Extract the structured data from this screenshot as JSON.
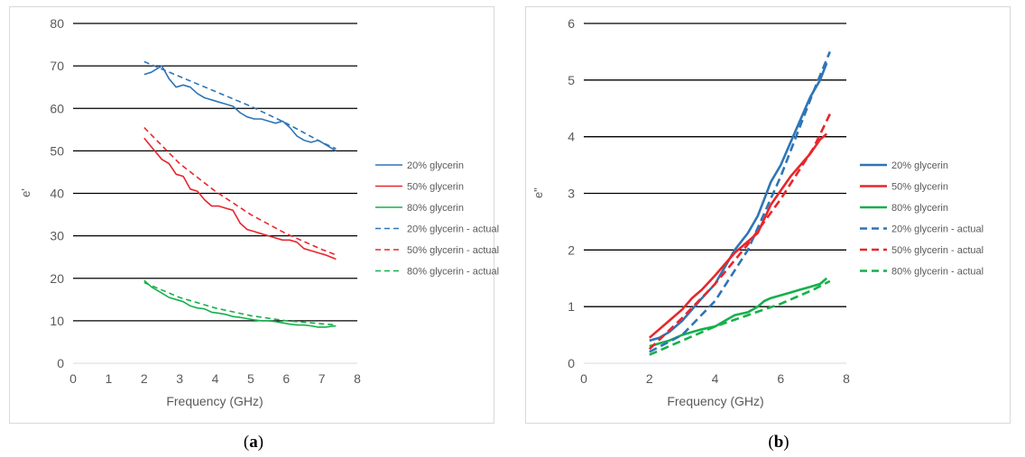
{
  "colors": {
    "blue": "#2e75b6",
    "red": "#e8262b",
    "green": "#15b04b"
  },
  "caption_a": {
    "open": "(",
    "letter": "a",
    "close": ")"
  },
  "caption_b": {
    "open": "(",
    "letter": "b",
    "close": ")"
  },
  "chart_data": [
    {
      "type": "line",
      "title": "",
      "xlabel": "Frequency (GHz)",
      "ylabel": "e'",
      "xlim": [
        0,
        8
      ],
      "ylim": [
        0,
        80
      ],
      "xticks": [
        0,
        1,
        2,
        3,
        4,
        5,
        6,
        7,
        8
      ],
      "yticks": [
        0,
        10,
        20,
        30,
        40,
        50,
        60,
        70,
        80
      ],
      "grid": "horizontal",
      "legend": "right",
      "series": [
        {
          "name": "20% glycerin",
          "color": "blue",
          "dash": false,
          "x": [
            2.0,
            2.2,
            2.5,
            2.7,
            2.9,
            3.1,
            3.3,
            3.5,
            3.7,
            3.9,
            4.1,
            4.3,
            4.5,
            4.7,
            4.9,
            5.1,
            5.3,
            5.5,
            5.7,
            5.9,
            6.1,
            6.3,
            6.5,
            6.7,
            6.9,
            7.1,
            7.4
          ],
          "y": [
            68,
            68.5,
            70,
            67,
            65,
            65.5,
            65,
            63.5,
            62.5,
            62,
            61.5,
            61,
            60.5,
            59,
            58,
            57.5,
            57.5,
            57,
            56.5,
            57,
            55.5,
            53.5,
            52.5,
            52,
            52.5,
            51.5,
            50
          ]
        },
        {
          "name": "50% glycerin",
          "color": "red",
          "dash": false,
          "x": [
            2.0,
            2.2,
            2.5,
            2.7,
            2.9,
            3.1,
            3.3,
            3.5,
            3.7,
            3.9,
            4.1,
            4.3,
            4.5,
            4.7,
            4.9,
            5.1,
            5.3,
            5.5,
            5.7,
            5.9,
            6.1,
            6.3,
            6.5,
            6.7,
            6.9,
            7.1,
            7.4
          ],
          "y": [
            53,
            51,
            48,
            47,
            44.5,
            44,
            41,
            40.5,
            38.5,
            37,
            37,
            36.5,
            36,
            33,
            31.5,
            31,
            30.5,
            30,
            29.5,
            29,
            29,
            28.5,
            27,
            26.5,
            26,
            25.5,
            24.5
          ]
        },
        {
          "name": "80% glycerin",
          "color": "green",
          "dash": false,
          "x": [
            2.0,
            2.2,
            2.5,
            2.7,
            2.9,
            3.1,
            3.3,
            3.5,
            3.7,
            3.9,
            4.1,
            4.3,
            4.5,
            4.7,
            4.9,
            5.1,
            5.3,
            5.5,
            5.7,
            5.9,
            6.1,
            6.3,
            6.5,
            6.7,
            6.9,
            7.1,
            7.4
          ],
          "y": [
            19.5,
            18,
            16.5,
            15.5,
            15,
            14.5,
            13.5,
            13,
            12.8,
            12,
            11.8,
            11.5,
            11,
            10.8,
            10.5,
            10.2,
            10,
            10,
            9.8,
            9.5,
            9.2,
            9,
            9,
            8.8,
            8.5,
            8.5,
            8.8
          ]
        },
        {
          "name": "20% glycerin - actual",
          "color": "blue",
          "dash": true,
          "x": [
            2.0,
            3.0,
            4.0,
            5.0,
            6.0,
            7.0,
            7.4
          ],
          "y": [
            71,
            67.5,
            64,
            60.5,
            56.5,
            52,
            50.5
          ]
        },
        {
          "name": "50% glycerin - actual",
          "color": "red",
          "dash": true,
          "x": [
            2.0,
            3.0,
            4.0,
            5.0,
            6.0,
            7.0,
            7.4
          ],
          "y": [
            55.5,
            47,
            40.5,
            35,
            30.5,
            26.8,
            25.5
          ]
        },
        {
          "name": "80% glycerin - actual",
          "color": "green",
          "dash": true,
          "x": [
            2.0,
            3.0,
            4.0,
            5.0,
            6.0,
            7.0,
            7.4
          ],
          "y": [
            19,
            15.5,
            13,
            11.2,
            10,
            9.3,
            9
          ]
        }
      ]
    },
    {
      "type": "line",
      "title": "",
      "xlabel": "Frequency (GHz)",
      "ylabel": "e\"",
      "xlim": [
        0,
        8
      ],
      "ylim": [
        0,
        6
      ],
      "xticks": [
        0,
        2,
        4,
        6,
        8
      ],
      "yticks": [
        0,
        1,
        2,
        3,
        4,
        5,
        6
      ],
      "grid": "horizontal",
      "legend": "right",
      "series": [
        {
          "name": "20% glycerin",
          "color": "blue",
          "dash": false,
          "x": [
            2.0,
            2.3,
            2.6,
            3.0,
            3.3,
            3.6,
            4.0,
            4.3,
            4.6,
            5.0,
            5.3,
            5.5,
            5.7,
            6.0,
            6.3,
            6.6,
            6.9,
            7.2,
            7.4
          ],
          "y": [
            0.4,
            0.45,
            0.55,
            0.75,
            0.95,
            1.15,
            1.4,
            1.7,
            2.0,
            2.3,
            2.6,
            2.9,
            3.2,
            3.5,
            3.9,
            4.3,
            4.7,
            5.0,
            5.3
          ]
        },
        {
          "name": "50% glycerin",
          "color": "red",
          "dash": false,
          "x": [
            2.0,
            2.3,
            2.6,
            3.0,
            3.3,
            3.6,
            4.0,
            4.3,
            4.6,
            5.0,
            5.3,
            5.5,
            5.7,
            6.0,
            6.3,
            6.6,
            6.9,
            7.2,
            7.4
          ],
          "y": [
            0.45,
            0.6,
            0.75,
            0.95,
            1.15,
            1.3,
            1.55,
            1.75,
            1.95,
            2.15,
            2.3,
            2.55,
            2.8,
            3.05,
            3.3,
            3.5,
            3.7,
            3.95,
            4.05
          ]
        },
        {
          "name": "80% glycerin",
          "color": "green",
          "dash": false,
          "x": [
            2.0,
            2.3,
            2.6,
            3.0,
            3.3,
            3.6,
            4.0,
            4.3,
            4.6,
            5.0,
            5.3,
            5.5,
            5.7,
            6.0,
            6.3,
            6.6,
            6.9,
            7.2,
            7.4
          ],
          "y": [
            0.3,
            0.35,
            0.4,
            0.5,
            0.55,
            0.6,
            0.65,
            0.75,
            0.85,
            0.9,
            1.0,
            1.1,
            1.15,
            1.2,
            1.25,
            1.3,
            1.35,
            1.4,
            1.5
          ]
        },
        {
          "name": "20% glycerin - actual",
          "color": "blue",
          "dash": true,
          "x": [
            2.0,
            3.0,
            4.0,
            5.0,
            6.0,
            7.0,
            7.5
          ],
          "y": [
            0.2,
            0.5,
            1.1,
            2.0,
            3.3,
            4.8,
            5.5
          ]
        },
        {
          "name": "50% glycerin - actual",
          "color": "red",
          "dash": true,
          "x": [
            2.0,
            3.0,
            4.0,
            5.0,
            6.0,
            7.0,
            7.5
          ],
          "y": [
            0.25,
            0.8,
            1.4,
            2.1,
            2.9,
            3.8,
            4.4
          ]
        },
        {
          "name": "80% glycerin - actual",
          "color": "green",
          "dash": true,
          "x": [
            2.0,
            3.0,
            4.0,
            5.0,
            6.0,
            7.0,
            7.5
          ],
          "y": [
            0.15,
            0.4,
            0.65,
            0.85,
            1.05,
            1.3,
            1.45
          ]
        }
      ]
    }
  ]
}
